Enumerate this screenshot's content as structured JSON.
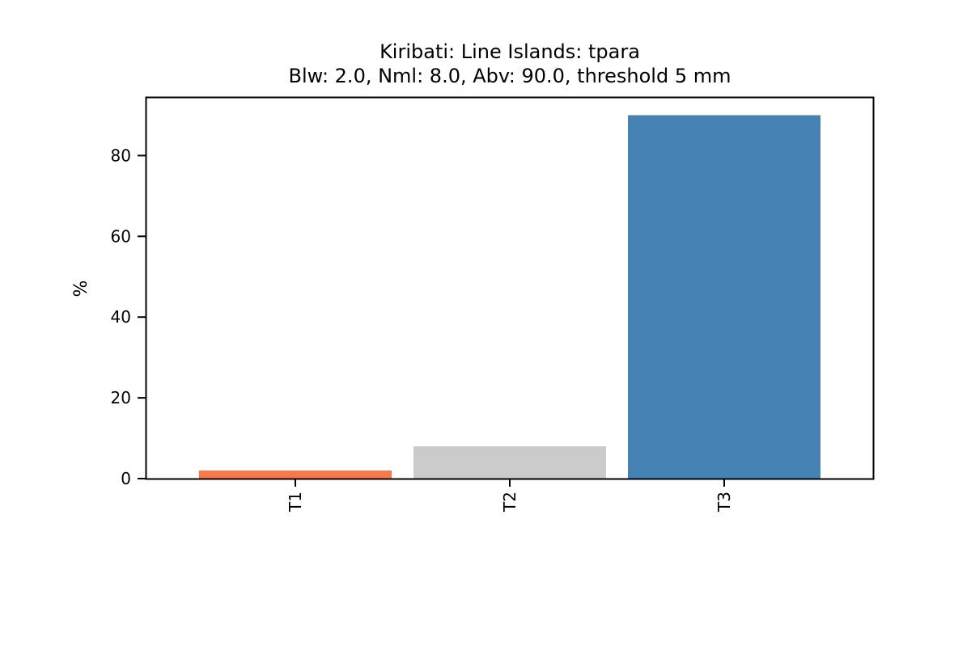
{
  "chart_data": {
    "type": "bar",
    "title": "Kiribati: Line Islands: tpara",
    "subtitle": "Blw: 2.0, Nml: 8.0, Abv: 90.0, threshold 5 mm",
    "xlabel": "",
    "ylabel": "%",
    "categories": [
      "T1",
      "T2",
      "T3"
    ],
    "values": [
      2.0,
      8.0,
      90.0
    ],
    "colors": [
      "#f4794f",
      "#cbcbcb",
      "#4682b4"
    ],
    "ylim": [
      0,
      94.5
    ],
    "yticks": [
      0,
      20,
      40,
      60,
      80
    ],
    "grid": false,
    "legend": "none"
  }
}
